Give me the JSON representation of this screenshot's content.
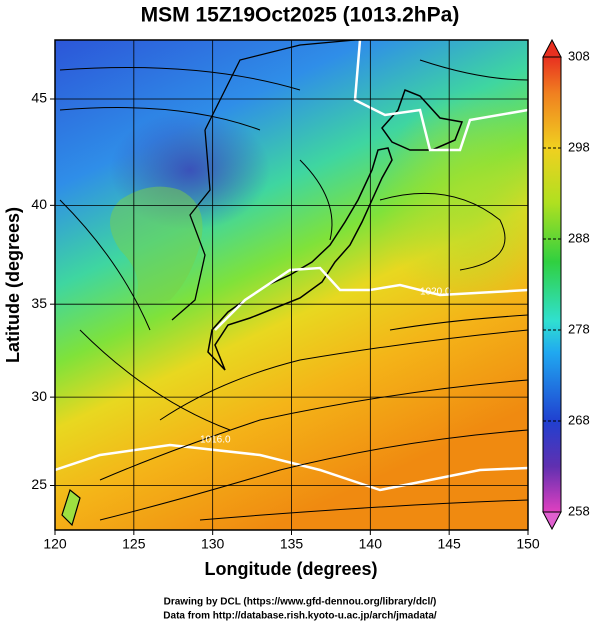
{
  "chart_data": {
    "type": "map",
    "title": "MSM 15Z19Oct2025 (1013.2hPa)",
    "x_label": "Longitude (degrees)",
    "y_label": "Latitude  (degrees)",
    "projection": "mercator",
    "xlim": [
      120,
      150
    ],
    "xticks": [
      120,
      125,
      130,
      135,
      140,
      145,
      150
    ],
    "ylim": [
      22.4,
      47.6
    ],
    "yticks": [
      25,
      30,
      35,
      40,
      45
    ],
    "grid": true,
    "colorbar": {
      "lim": [
        258,
        308
      ],
      "ticks": [
        258,
        268,
        278,
        288,
        298,
        308
      ]
    },
    "annotations": [
      "1020.0",
      "1016.0"
    ],
    "footer": [
      "Drawing by DCL (https://www.gfd-dennou.org/library/dcl/)",
      "Data from http://database.rish.kyoto-u.ac.jp/arch/jmadata/"
    ]
  }
}
